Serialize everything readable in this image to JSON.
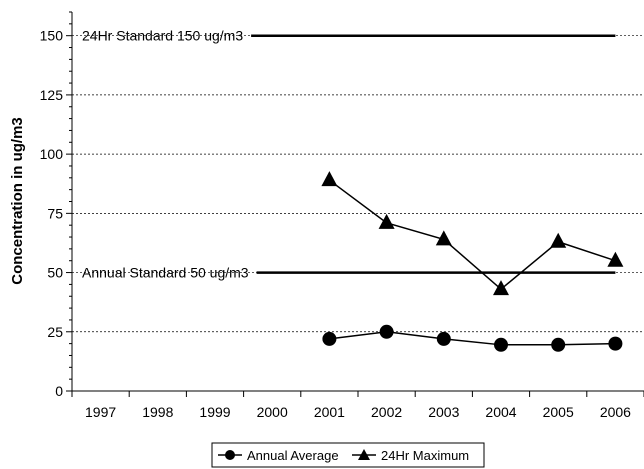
{
  "chart_data": {
    "type": "line",
    "title": "",
    "xlabel": "",
    "ylabel": "Concentration in ug/m3",
    "categories": [
      "1997",
      "1998",
      "1999",
      "2000",
      "2001",
      "2002",
      "2003",
      "2004",
      "2005",
      "2006"
    ],
    "ylim": [
      0,
      160
    ],
    "yticks": [
      "0",
      "25",
      "50",
      "75",
      "100",
      "125",
      "150"
    ],
    "grid": "horizontal dashed",
    "legend_position": "bottom",
    "series": [
      {
        "name": "Annual Average",
        "marker": "circle",
        "values": [
          null,
          null,
          null,
          null,
          22,
          25,
          22,
          19.5,
          19.5,
          20
        ]
      },
      {
        "name": "24Hr Maximum",
        "marker": "triangle",
        "values": [
          null,
          null,
          null,
          null,
          89,
          71,
          64,
          43,
          63,
          55
        ]
      }
    ],
    "reference_lines": [
      {
        "label": "24Hr Standard 150 ug/m3",
        "value": 150,
        "from": "1997",
        "to": "2006"
      },
      {
        "label": "Annual Standard 50 ug/m3",
        "value": 50,
        "from": "1997",
        "to": "2006"
      }
    ],
    "colors": {
      "series": "#000000",
      "grid": "#000000",
      "background": "#ffffff"
    }
  }
}
